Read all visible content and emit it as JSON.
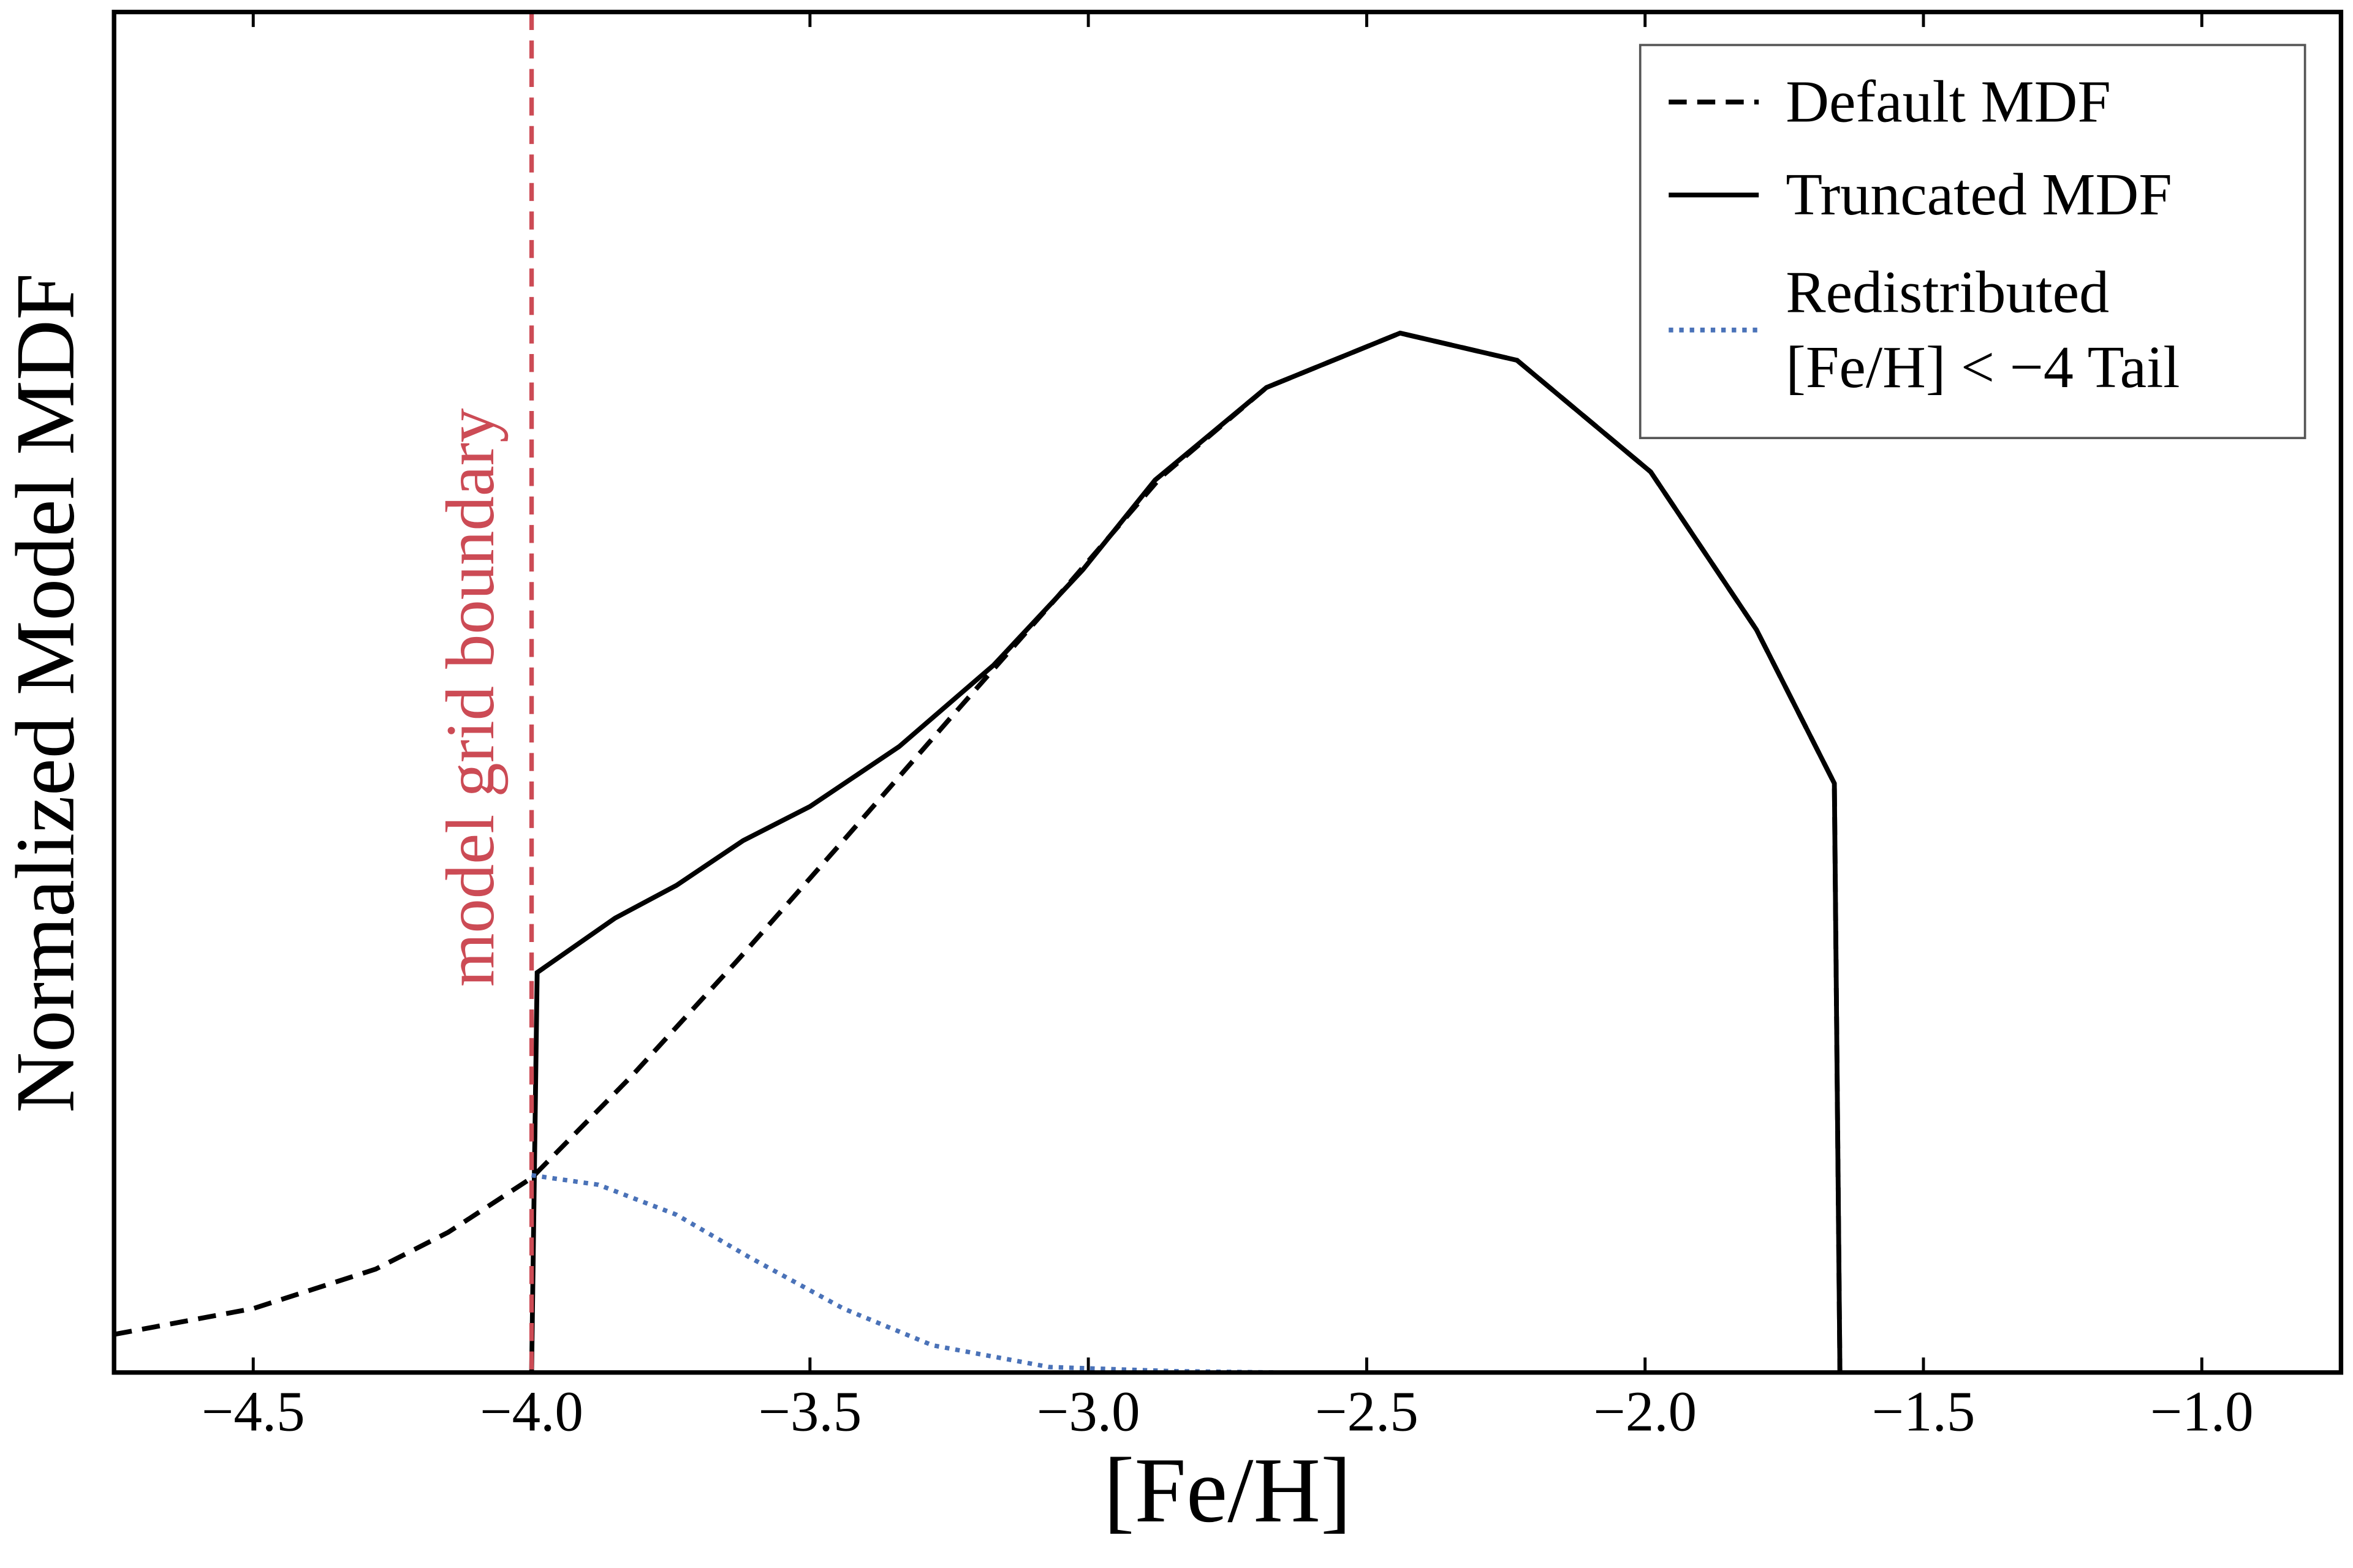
{
  "chart_data": {
    "type": "line",
    "x_label": "[Fe/H]",
    "y_label": "Normalized Model MDF",
    "xlim": [
      -4.75,
      -0.75
    ],
    "ylim": [
      0,
      1
    ],
    "xticks": [
      {
        "value": -4.5,
        "label": "−4.5"
      },
      {
        "value": -4.0,
        "label": "−4.0"
      },
      {
        "value": -3.5,
        "label": "−3.5"
      },
      {
        "value": -3.0,
        "label": "−3.0"
      },
      {
        "value": -2.5,
        "label": "−2.5"
      },
      {
        "value": -2.0,
        "label": "−2.0"
      },
      {
        "value": -1.5,
        "label": "−1.5"
      },
      {
        "value": -1.0,
        "label": "−1.0"
      }
    ],
    "legend": "upper right",
    "vline": {
      "x": -4.0,
      "color": "#cc4b55",
      "style": "dashed",
      "label": "model grid boundary"
    },
    "series": [
      {
        "name": "Default MDF",
        "color": "#000000",
        "style": "dashed",
        "x": [
          -4.75,
          -4.5,
          -4.28,
          -4.15,
          -4.0,
          -3.82,
          -3.63,
          -3.44,
          -3.25,
          -3.06,
          -2.87,
          -2.68,
          -2.44,
          -2.23,
          -1.99,
          -1.8,
          -1.66,
          -1.65
        ],
        "values": [
          0.028,
          0.047,
          0.076,
          0.103,
          0.143,
          0.218,
          0.303,
          0.391,
          0.48,
          0.568,
          0.658,
          0.724,
          0.764,
          0.744,
          0.662,
          0.546,
          0.433,
          0
        ]
      },
      {
        "name": "Truncated MDF",
        "color": "#000000",
        "style": "solid",
        "x": [
          -4.0,
          -3.99,
          -3.85,
          -3.74,
          -3.62,
          -3.5,
          -3.34,
          -3.17,
          -3.01,
          -2.88,
          -2.68,
          -2.44,
          -2.23,
          -1.99,
          -1.8,
          -1.66,
          -1.65
        ],
        "values": [
          0,
          0.294,
          0.334,
          0.358,
          0.391,
          0.416,
          0.46,
          0.52,
          0.59,
          0.656,
          0.724,
          0.764,
          0.744,
          0.662,
          0.546,
          0.433,
          0
        ]
      },
      {
        "name": "Redistributed\n[Fe/H] < −4 Tail",
        "color": "#4a72b8",
        "style": "dotted",
        "x": [
          -4.0,
          -3.88,
          -3.74,
          -3.61,
          -3.44,
          -3.28,
          -3.07,
          -2.85,
          -2.66
        ],
        "values": [
          0.145,
          0.138,
          0.116,
          0.085,
          0.047,
          0.02,
          0.004,
          0.001,
          0
        ]
      }
    ]
  }
}
